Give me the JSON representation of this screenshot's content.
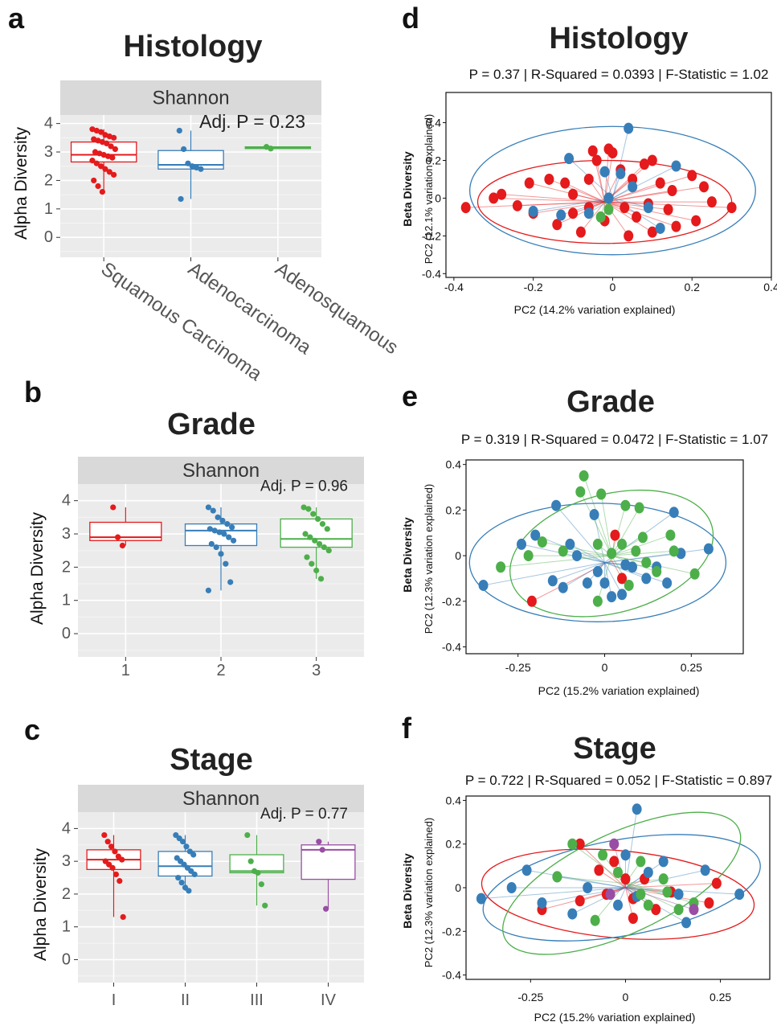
{
  "colors": {
    "red": "#e41a1c",
    "blue": "#377eb8",
    "green": "#4daf4a",
    "purple": "#984ea3",
    "panel_bg": "#ebebeb",
    "strip_bg": "#d9d9d9"
  },
  "chart_data": [
    {
      "id": "a",
      "letter": "a",
      "type": "box",
      "title": "Histology",
      "strip": "Shannon",
      "ylabel": "Alpha Diversity",
      "annotation": "Adj. P =  0.23",
      "categories": [
        "Squamous Carcinoma",
        "Adenocarcinoma",
        "Adenosquamous"
      ],
      "ylim": [
        -0.7,
        4.3
      ],
      "yticks": [
        "0",
        "1",
        "2",
        "3",
        "4"
      ],
      "boxes": [
        {
          "color": "red",
          "q1": 2.65,
          "median": 2.9,
          "q3": 3.35,
          "wlow": 1.6,
          "whigh": 3.8,
          "points": [
            3.8,
            3.75,
            3.7,
            3.6,
            3.55,
            3.5,
            3.45,
            3.4,
            3.35,
            3.3,
            3.2,
            3.1,
            3.0,
            2.95,
            2.9,
            2.85,
            2.8,
            2.7,
            2.6,
            2.5,
            2.4,
            2.3,
            2.2,
            2.0,
            1.8,
            1.6
          ]
        },
        {
          "color": "blue",
          "q1": 2.4,
          "median": 2.55,
          "q3": 3.05,
          "wlow": 1.35,
          "whigh": 3.75,
          "points": [
            3.75,
            3.1,
            2.6,
            2.5,
            2.45,
            2.4,
            1.35
          ]
        },
        {
          "color": "green",
          "q1": 3.12,
          "median": 3.15,
          "q3": 3.18,
          "wlow": 3.1,
          "whigh": 3.2,
          "points": [
            3.18,
            3.12
          ]
        }
      ]
    },
    {
      "id": "b",
      "letter": "b",
      "type": "box",
      "title": "Grade",
      "strip": "Shannon",
      "ylabel": "Alpha Diversity",
      "annotation": "Adj. P =  0.96",
      "categories": [
        "1",
        "2",
        "3"
      ],
      "ylim": [
        -0.7,
        4.5
      ],
      "yticks": [
        "0",
        "1",
        "2",
        "3",
        "4"
      ],
      "boxes": [
        {
          "color": "red",
          "q1": 2.8,
          "median": 2.9,
          "q3": 3.35,
          "wlow": 2.65,
          "whigh": 3.8,
          "points": [
            3.8,
            2.9,
            2.65
          ]
        },
        {
          "color": "blue",
          "q1": 2.65,
          "median": 3.1,
          "q3": 3.3,
          "wlow": 1.3,
          "whigh": 3.8,
          "points": [
            3.8,
            3.7,
            3.5,
            3.4,
            3.3,
            3.2,
            3.15,
            3.1,
            3.05,
            3.0,
            2.9,
            2.8,
            2.7,
            2.6,
            2.4,
            2.1,
            1.55,
            1.3
          ]
        },
        {
          "color": "green",
          "q1": 2.6,
          "median": 2.85,
          "q3": 3.45,
          "wlow": 1.65,
          "whigh": 3.8,
          "points": [
            3.8,
            3.75,
            3.6,
            3.45,
            3.3,
            3.15,
            3.0,
            2.9,
            2.8,
            2.7,
            2.6,
            2.5,
            2.3,
            2.1,
            1.9,
            1.65
          ]
        }
      ]
    },
    {
      "id": "c",
      "letter": "c",
      "type": "box",
      "title": "Stage",
      "strip": "Shannon",
      "ylabel": "Alpha Diversity",
      "annotation": "Adj. P =  0.77",
      "categories": [
        "I",
        "II",
        "III",
        "IV"
      ],
      "ylim": [
        -0.7,
        4.5
      ],
      "yticks": [
        "0",
        "1",
        "2",
        "3",
        "4"
      ],
      "boxes": [
        {
          "color": "red",
          "q1": 2.75,
          "median": 3.05,
          "q3": 3.35,
          "wlow": 1.3,
          "whigh": 3.8,
          "points": [
            3.8,
            3.6,
            3.45,
            3.3,
            3.15,
            3.05,
            3.0,
            2.9,
            2.8,
            2.6,
            2.4,
            1.3
          ]
        },
        {
          "color": "blue",
          "q1": 2.55,
          "median": 2.85,
          "q3": 3.3,
          "wlow": 2.1,
          "whigh": 3.8,
          "points": [
            3.8,
            3.7,
            3.6,
            3.45,
            3.3,
            3.2,
            3.1,
            3.0,
            2.9,
            2.8,
            2.7,
            2.6,
            2.5,
            2.35,
            2.2,
            2.1
          ]
        },
        {
          "color": "green",
          "q1": 2.65,
          "median": 2.7,
          "q3": 3.2,
          "wlow": 1.65,
          "whigh": 3.8,
          "points": [
            3.8,
            3.0,
            2.7,
            2.65,
            2.3,
            1.65
          ]
        },
        {
          "color": "purple",
          "q1": 2.45,
          "median": 3.35,
          "q3": 3.5,
          "wlow": 1.55,
          "whigh": 3.6,
          "points": [
            3.6,
            3.35,
            1.55
          ]
        }
      ]
    },
    {
      "id": "d",
      "letter": "d",
      "type": "scatter",
      "title": "Histology",
      "stats": "P = 0.37 | R-Squared = 0.0393 | F-Statistic = 1.02",
      "xlabel": "PC2 (14.2% variation explained)",
      "ylabel_bold": "Beta Diversity",
      "ylabel": "PC2 (12.1% variation explained)",
      "xlim": [
        -0.42,
        0.4
      ],
      "ylim": [
        -0.42,
        0.56
      ],
      "xticks": [
        -0.4,
        -0.2,
        0.0,
        0.2,
        0.4
      ],
      "yticks": [
        -0.4,
        -0.2,
        0.0,
        0.2,
        0.4
      ],
      "groups": [
        {
          "color": "red",
          "centroid": [
            -0.02,
            -0.02
          ],
          "ellipse": {
            "cx": -0.02,
            "cy": -0.02,
            "rx": 0.32,
            "ry": 0.22,
            "angle": 0
          },
          "points": [
            [
              -0.37,
              -0.05
            ],
            [
              -0.28,
              0.02
            ],
            [
              -0.21,
              0.08
            ],
            [
              -0.16,
              0.1
            ],
            [
              -0.12,
              0.08
            ],
            [
              -0.1,
              0.02
            ],
            [
              -0.06,
              0.1
            ],
            [
              -0.04,
              0.2
            ],
            [
              -0.01,
              0.26
            ],
            [
              0.02,
              0.15
            ],
            [
              0.05,
              0.1
            ],
            [
              0.08,
              0.18
            ],
            [
              0.1,
              0.2
            ],
            [
              0.12,
              0.08
            ],
            [
              0.15,
              0.04
            ],
            [
              0.2,
              0.12
            ],
            [
              0.23,
              0.06
            ],
            [
              0.25,
              -0.02
            ],
            [
              0.3,
              -0.05
            ],
            [
              0.21,
              -0.12
            ],
            [
              0.16,
              -0.15
            ],
            [
              0.1,
              -0.18
            ],
            [
              0.06,
              -0.1
            ],
            [
              0.03,
              -0.05
            ],
            [
              -0.02,
              -0.12
            ],
            [
              -0.06,
              -0.05
            ],
            [
              -0.1,
              -0.08
            ],
            [
              -0.14,
              -0.14
            ],
            [
              -0.2,
              -0.08
            ],
            [
              -0.24,
              -0.04
            ],
            [
              -0.3,
              0.0
            ],
            [
              -0.05,
              0.25
            ],
            [
              0.0,
              0.24
            ],
            [
              0.09,
              -0.03
            ],
            [
              0.14,
              -0.06
            ],
            [
              -0.08,
              -0.18
            ],
            [
              0.04,
              -0.2
            ]
          ]
        },
        {
          "color": "blue",
          "centroid": [
            0.0,
            0.0
          ],
          "ellipse": {
            "cx": 0.0,
            "cy": 0.04,
            "rx": 0.36,
            "ry": 0.34,
            "angle": 0
          },
          "points": [
            [
              0.04,
              0.37
            ],
            [
              -0.11,
              0.21
            ],
            [
              -0.2,
              -0.07
            ],
            [
              -0.13,
              -0.09
            ],
            [
              -0.06,
              -0.08
            ],
            [
              -0.01,
              0.0
            ],
            [
              0.02,
              0.13
            ],
            [
              0.05,
              0.06
            ],
            [
              0.09,
              -0.05
            ],
            [
              0.12,
              -0.16
            ],
            [
              0.16,
              0.17
            ],
            [
              -0.02,
              0.14
            ]
          ]
        },
        {
          "color": "green",
          "centroid": [
            -0.02,
            -0.02
          ],
          "points": [
            [
              -0.03,
              -0.1
            ],
            [
              -0.01,
              -0.06
            ]
          ]
        }
      ]
    },
    {
      "id": "e",
      "letter": "e",
      "type": "scatter",
      "title": "Grade",
      "stats": "P = 0.319 | R-Squared = 0.0472 | F-Statistic = 1.07",
      "xlabel": "PC2 (15.2% variation explained)",
      "ylabel_bold": "Beta Diversity",
      "ylabel": "PC2 (12.3% variation explained)",
      "xlim": [
        -0.4,
        0.4
      ],
      "ylim": [
        -0.43,
        0.42
      ],
      "xticks": [
        -0.25,
        0.0,
        0.25
      ],
      "yticks": [
        -0.4,
        -0.2,
        0.0,
        0.2,
        0.4
      ],
      "groups": [
        {
          "color": "red",
          "centroid": [
            0.02,
            -0.02
          ],
          "points": [
            [
              0.03,
              0.09
            ],
            [
              0.05,
              -0.1
            ],
            [
              -0.21,
              -0.2
            ]
          ]
        },
        {
          "color": "blue",
          "centroid": [
            0.0,
            -0.03
          ],
          "ellipse": {
            "cx": -0.02,
            "cy": -0.03,
            "rx": 0.37,
            "ry": 0.26,
            "angle": 0
          },
          "points": [
            [
              -0.35,
              -0.13
            ],
            [
              -0.24,
              0.05
            ],
            [
              -0.2,
              0.09
            ],
            [
              -0.14,
              0.22
            ],
            [
              -0.15,
              -0.11
            ],
            [
              -0.12,
              -0.14
            ],
            [
              -0.1,
              0.05
            ],
            [
              -0.08,
              0.0
            ],
            [
              -0.05,
              -0.12
            ],
            [
              -0.02,
              -0.07
            ],
            [
              0.0,
              -0.12
            ],
            [
              0.02,
              -0.18
            ],
            [
              0.05,
              -0.17
            ],
            [
              0.08,
              -0.05
            ],
            [
              0.12,
              -0.1
            ],
            [
              0.15,
              -0.05
            ],
            [
              0.18,
              -0.12
            ],
            [
              0.22,
              0.01
            ],
            [
              0.3,
              0.03
            ],
            [
              0.2,
              0.19
            ],
            [
              -0.03,
              0.18
            ],
            [
              0.06,
              -0.04
            ]
          ]
        },
        {
          "color": "green",
          "centroid": [
            0.02,
            0.0
          ],
          "ellipse": {
            "cx": 0.02,
            "cy": 0.01,
            "rx": 0.3,
            "ry": 0.26,
            "angle": -15
          },
          "points": [
            [
              -0.06,
              0.35
            ],
            [
              -0.07,
              0.28
            ],
            [
              -0.01,
              0.27
            ],
            [
              0.06,
              0.22
            ],
            [
              0.1,
              0.21
            ],
            [
              -0.3,
              -0.05
            ],
            [
              -0.22,
              0.0
            ],
            [
              -0.18,
              0.06
            ],
            [
              -0.12,
              0.02
            ],
            [
              -0.02,
              0.05
            ],
            [
              0.02,
              0.01
            ],
            [
              0.05,
              0.05
            ],
            [
              0.09,
              0.02
            ],
            [
              0.12,
              -0.03
            ],
            [
              0.15,
              -0.07
            ],
            [
              0.19,
              0.09
            ],
            [
              0.26,
              -0.08
            ],
            [
              -0.02,
              -0.2
            ],
            [
              0.07,
              -0.13
            ],
            [
              0.11,
              0.08
            ],
            [
              0.2,
              0.02
            ]
          ]
        }
      ]
    },
    {
      "id": "f",
      "letter": "f",
      "type": "scatter",
      "title": "Stage",
      "stats": "P = 0.722 | R-Squared = 0.052 | F-Statistic = 0.897",
      "xlabel": "PC2 (15.2% variation explained)",
      "ylabel_bold": "Beta Diversity",
      "ylabel": "PC2 (12.3% variation explained)",
      "xlim": [
        -0.42,
        0.38
      ],
      "ylim": [
        -0.42,
        0.42
      ],
      "xticks": [
        -0.25,
        0.0,
        0.25
      ],
      "yticks": [
        -0.4,
        -0.2,
        0.0,
        0.2,
        0.4
      ],
      "groups": [
        {
          "color": "red",
          "centroid": [
            0.0,
            0.0
          ],
          "ellipse": {
            "cx": -0.02,
            "cy": -0.03,
            "rx": 0.36,
            "ry": 0.2,
            "angle": 5
          },
          "points": [
            [
              -0.12,
              0.2
            ],
            [
              -0.07,
              0.08
            ],
            [
              -0.03,
              0.12
            ],
            [
              0.0,
              0.04
            ],
            [
              0.02,
              -0.05
            ],
            [
              0.05,
              0.04
            ],
            [
              0.08,
              -0.1
            ],
            [
              0.12,
              -0.02
            ],
            [
              0.22,
              -0.07
            ],
            [
              0.24,
              0.02
            ],
            [
              -0.22,
              -0.1
            ],
            [
              -0.12,
              -0.06
            ],
            [
              -0.05,
              -0.03
            ],
            [
              0.02,
              -0.14
            ]
          ]
        },
        {
          "color": "blue",
          "centroid": [
            0.0,
            0.0
          ],
          "ellipse": {
            "cx": -0.01,
            "cy": 0.0,
            "rx": 0.37,
            "ry": 0.22,
            "angle": -10
          },
          "points": [
            [
              0.03,
              0.36
            ],
            [
              -0.38,
              -0.05
            ],
            [
              -0.3,
              0.0
            ],
            [
              -0.26,
              0.08
            ],
            [
              -0.18,
              0.05
            ],
            [
              -0.14,
              -0.12
            ],
            [
              -0.1,
              0.0
            ],
            [
              -0.02,
              -0.08
            ],
            [
              0.0,
              0.15
            ],
            [
              0.03,
              -0.04
            ],
            [
              0.06,
              0.07
            ],
            [
              0.1,
              0.12
            ],
            [
              0.14,
              -0.03
            ],
            [
              0.16,
              -0.16
            ],
            [
              0.21,
              0.08
            ],
            [
              0.3,
              -0.03
            ],
            [
              -0.22,
              -0.07
            ]
          ]
        },
        {
          "color": "green",
          "centroid": [
            0.0,
            0.02
          ],
          "ellipse": {
            "cx": -0.01,
            "cy": 0.02,
            "rx": 0.34,
            "ry": 0.23,
            "angle": -25
          },
          "points": [
            [
              -0.18,
              0.05
            ],
            [
              -0.14,
              0.2
            ],
            [
              -0.06,
              0.15
            ],
            [
              -0.02,
              0.07
            ],
            [
              0.04,
              0.12
            ],
            [
              0.06,
              -0.08
            ],
            [
              0.1,
              0.04
            ],
            [
              0.14,
              -0.1
            ],
            [
              0.18,
              -0.07
            ],
            [
              -0.08,
              -0.15
            ],
            [
              0.04,
              -0.03
            ],
            [
              0.11,
              -0.02
            ]
          ]
        },
        {
          "color": "purple",
          "centroid": [
            0.0,
            0.0
          ],
          "points": [
            [
              -0.03,
              0.2
            ],
            [
              -0.04,
              -0.03
            ],
            [
              0.18,
              -0.1
            ]
          ]
        }
      ]
    }
  ]
}
